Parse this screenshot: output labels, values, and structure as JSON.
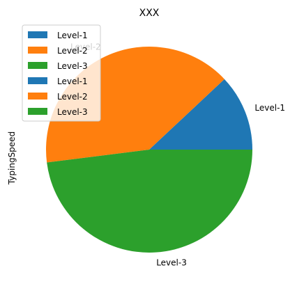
{
  "chart_data": {
    "type": "pie",
    "title": "XXX",
    "ylabel": "TypingSpeed",
    "xlabel": "",
    "slices": [
      {
        "label": "Level-1",
        "value": 12,
        "color": "#1f77b4"
      },
      {
        "label": "Level-2",
        "value": 40,
        "color": "#ff7f0e"
      },
      {
        "label": "Level-3",
        "value": 48,
        "color": "#2ca02c"
      }
    ],
    "legend": {
      "placement": "upper-left",
      "entries": [
        {
          "label": "Level-1",
          "color": "#1f77b4"
        },
        {
          "label": "Level-2",
          "color": "#ff7f0e"
        },
        {
          "label": "Level-3",
          "color": "#2ca02c"
        },
        {
          "label": "Level-1",
          "color": "#1f77b4"
        },
        {
          "label": "Level-2",
          "color": "#ff7f0e"
        },
        {
          "label": "Level-3",
          "color": "#2ca02c"
        }
      ]
    }
  }
}
